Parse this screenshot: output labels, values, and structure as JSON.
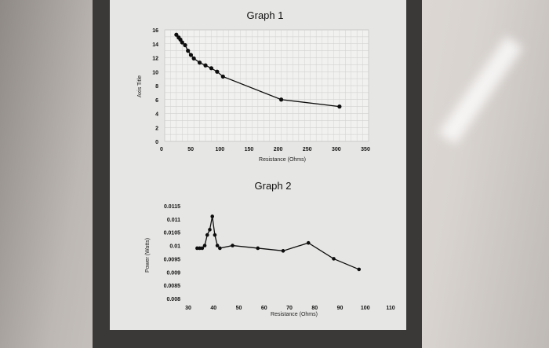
{
  "chart_data": [
    {
      "type": "line",
      "title": "Graph 1",
      "xlabel": "Resistance (Ohms)",
      "ylabel": "Axis Title",
      "xlim": [
        0,
        350
      ],
      "ylim": [
        0,
        16
      ],
      "x_ticks": [
        "0",
        "50",
        "100",
        "150",
        "200",
        "250",
        "300",
        "350"
      ],
      "y_ticks": [
        "0",
        "2",
        "4",
        "6",
        "8",
        "10",
        "12",
        "14",
        "16"
      ],
      "grid": true,
      "series": [
        {
          "x": [
            20,
            24,
            27,
            30,
            35,
            40,
            45,
            50,
            60,
            70,
            80,
            90,
            100,
            200,
            300
          ],
          "y": [
            15.3,
            14.9,
            14.6,
            14.2,
            13.8,
            13.0,
            12.4,
            11.9,
            11.3,
            10.9,
            10.5,
            10.0,
            9.3,
            6.0,
            5.0
          ]
        }
      ]
    },
    {
      "type": "line",
      "title": "Graph 2",
      "xlabel": "Resistance (Ohms)",
      "ylabel": "Power (Watts)",
      "xlim": [
        30,
        110
      ],
      "ylim": [
        0.008,
        0.0115
      ],
      "x_ticks": [
        "30",
        "40",
        "50",
        "60",
        "70",
        "80",
        "90",
        "100",
        "110"
      ],
      "y_ticks": [
        "0.008",
        "0.0085",
        "0.009",
        "0.0095",
        "0.01",
        "0.0105",
        "0.011",
        "0.0115"
      ],
      "grid": false,
      "series": [
        {
          "x": [
            36,
            37,
            38,
            39,
            40,
            41,
            42,
            43,
            44,
            45,
            50,
            60,
            70,
            80,
            90,
            100
          ],
          "y": [
            0.0099,
            0.0099,
            0.0099,
            0.01,
            0.0104,
            0.0106,
            0.0111,
            0.0104,
            0.01,
            0.0099,
            0.01,
            0.0099,
            0.0098,
            0.0101,
            0.0095,
            0.0091
          ]
        }
      ]
    }
  ]
}
